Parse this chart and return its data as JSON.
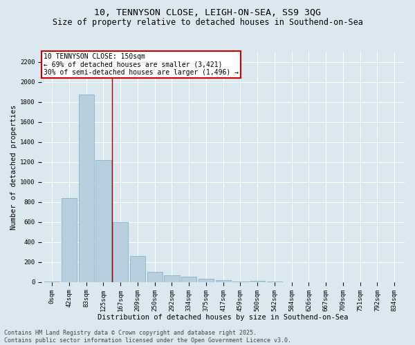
{
  "title_line1": "10, TENNYSON CLOSE, LEIGH-ON-SEA, SS9 3QG",
  "title_line2": "Size of property relative to detached houses in Southend-on-Sea",
  "xlabel": "Distribution of detached houses by size in Southend-on-Sea",
  "ylabel": "Number of detached properties",
  "background_color": "#dce8f0",
  "bar_color": "#b8cfe0",
  "bar_edge_color": "#7aaabf",
  "grid_color": "#ffffff",
  "annotation_text": "10 TENNYSON CLOSE: 150sqm\n← 69% of detached houses are smaller (3,421)\n30% of semi-detached houses are larger (1,496) →",
  "annotation_box_color": "#ffffff",
  "annotation_border_color": "#cc0000",
  "vline_color": "#aa0000",
  "vline_x": 3.5,
  "categories": [
    "0sqm",
    "42sqm",
    "83sqm",
    "125sqm",
    "167sqm",
    "209sqm",
    "250sqm",
    "292sqm",
    "334sqm",
    "375sqm",
    "417sqm",
    "459sqm",
    "500sqm",
    "542sqm",
    "584sqm",
    "626sqm",
    "667sqm",
    "709sqm",
    "751sqm",
    "792sqm",
    "834sqm"
  ],
  "bar_heights": [
    5,
    840,
    1870,
    1220,
    600,
    260,
    100,
    70,
    55,
    35,
    18,
    5,
    12,
    3,
    0,
    0,
    0,
    0,
    0,
    0,
    0
  ],
  "ylim": [
    0,
    2300
  ],
  "yticks": [
    0,
    200,
    400,
    600,
    800,
    1000,
    1200,
    1400,
    1600,
    1800,
    2000,
    2200
  ],
  "footer_text": "Contains HM Land Registry data © Crown copyright and database right 2025.\nContains public sector information licensed under the Open Government Licence v3.0.",
  "title_fontsize": 9.5,
  "subtitle_fontsize": 8.5,
  "label_fontsize": 7.5,
  "tick_fontsize": 6.5,
  "annotation_fontsize": 7,
  "footer_fontsize": 6
}
